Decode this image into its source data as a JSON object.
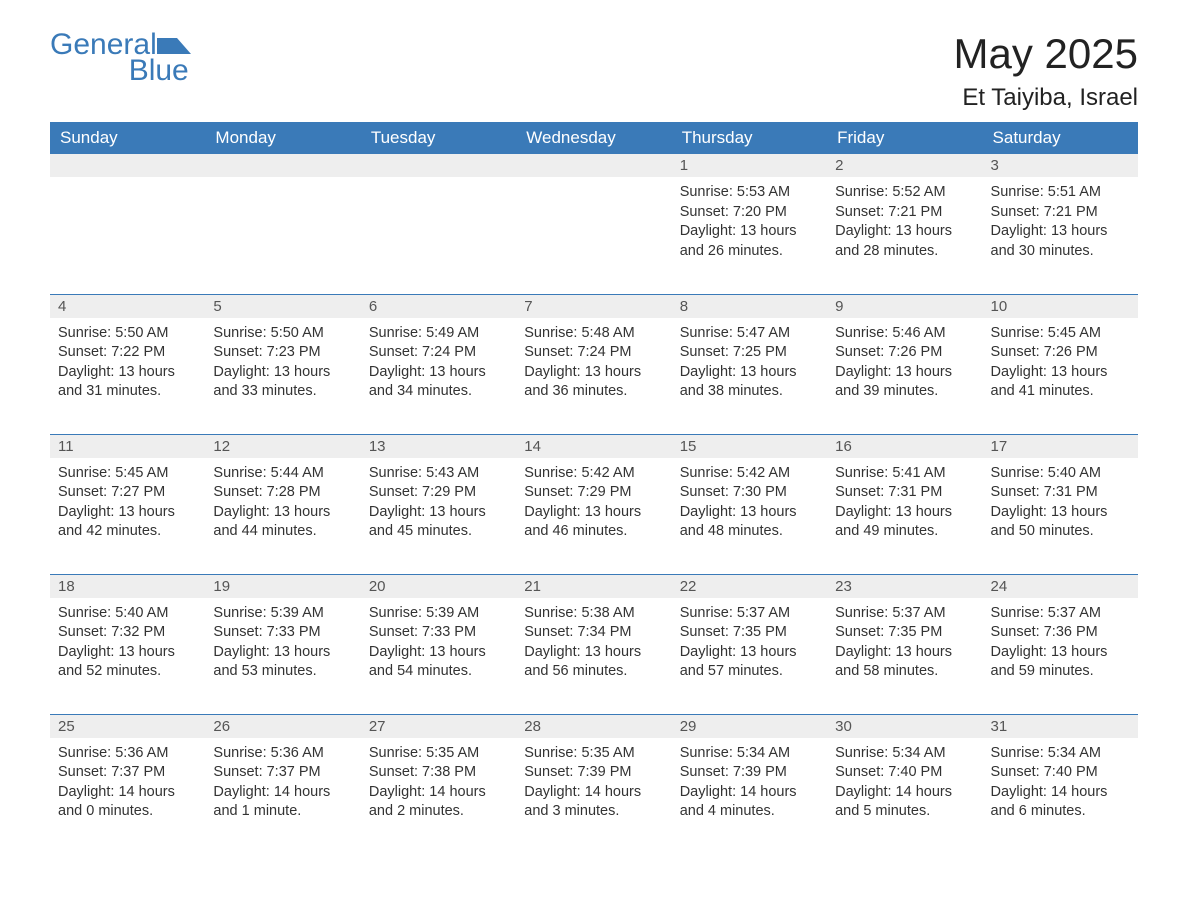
{
  "brand": {
    "name_line1": "General",
    "name_line2": "Blue"
  },
  "title": "May 2025",
  "location": "Et Taiyiba, Israel",
  "colors": {
    "header_bg": "#3a7ab8",
    "header_text": "#ffffff",
    "daybar_bg": "#eeeeee",
    "daybar_text": "#555555",
    "body_text": "#333333",
    "rule": "#3a7ab8",
    "brand": "#3a7ab8"
  },
  "typography": {
    "title_fontsize": 42,
    "location_fontsize": 24,
    "header_fontsize": 17,
    "daynum_fontsize": 15,
    "body_fontsize": 14.5,
    "brand_fontsize": 30
  },
  "layout": {
    "columns": 7,
    "rows": 5,
    "start_day_index": 4
  },
  "weekdays": [
    "Sunday",
    "Monday",
    "Tuesday",
    "Wednesday",
    "Thursday",
    "Friday",
    "Saturday"
  ],
  "labels": {
    "sunrise": "Sunrise: ",
    "sunset": "Sunset: ",
    "daylight": "Daylight: "
  },
  "days": [
    {
      "n": 1,
      "sunrise": "5:53 AM",
      "sunset": "7:20 PM",
      "daylight": "13 hours and 26 minutes."
    },
    {
      "n": 2,
      "sunrise": "5:52 AM",
      "sunset": "7:21 PM",
      "daylight": "13 hours and 28 minutes."
    },
    {
      "n": 3,
      "sunrise": "5:51 AM",
      "sunset": "7:21 PM",
      "daylight": "13 hours and 30 minutes."
    },
    {
      "n": 4,
      "sunrise": "5:50 AM",
      "sunset": "7:22 PM",
      "daylight": "13 hours and 31 minutes."
    },
    {
      "n": 5,
      "sunrise": "5:50 AM",
      "sunset": "7:23 PM",
      "daylight": "13 hours and 33 minutes."
    },
    {
      "n": 6,
      "sunrise": "5:49 AM",
      "sunset": "7:24 PM",
      "daylight": "13 hours and 34 minutes."
    },
    {
      "n": 7,
      "sunrise": "5:48 AM",
      "sunset": "7:24 PM",
      "daylight": "13 hours and 36 minutes."
    },
    {
      "n": 8,
      "sunrise": "5:47 AM",
      "sunset": "7:25 PM",
      "daylight": "13 hours and 38 minutes."
    },
    {
      "n": 9,
      "sunrise": "5:46 AM",
      "sunset": "7:26 PM",
      "daylight": "13 hours and 39 minutes."
    },
    {
      "n": 10,
      "sunrise": "5:45 AM",
      "sunset": "7:26 PM",
      "daylight": "13 hours and 41 minutes."
    },
    {
      "n": 11,
      "sunrise": "5:45 AM",
      "sunset": "7:27 PM",
      "daylight": "13 hours and 42 minutes."
    },
    {
      "n": 12,
      "sunrise": "5:44 AM",
      "sunset": "7:28 PM",
      "daylight": "13 hours and 44 minutes."
    },
    {
      "n": 13,
      "sunrise": "5:43 AM",
      "sunset": "7:29 PM",
      "daylight": "13 hours and 45 minutes."
    },
    {
      "n": 14,
      "sunrise": "5:42 AM",
      "sunset": "7:29 PM",
      "daylight": "13 hours and 46 minutes."
    },
    {
      "n": 15,
      "sunrise": "5:42 AM",
      "sunset": "7:30 PM",
      "daylight": "13 hours and 48 minutes."
    },
    {
      "n": 16,
      "sunrise": "5:41 AM",
      "sunset": "7:31 PM",
      "daylight": "13 hours and 49 minutes."
    },
    {
      "n": 17,
      "sunrise": "5:40 AM",
      "sunset": "7:31 PM",
      "daylight": "13 hours and 50 minutes."
    },
    {
      "n": 18,
      "sunrise": "5:40 AM",
      "sunset": "7:32 PM",
      "daylight": "13 hours and 52 minutes."
    },
    {
      "n": 19,
      "sunrise": "5:39 AM",
      "sunset": "7:33 PM",
      "daylight": "13 hours and 53 minutes."
    },
    {
      "n": 20,
      "sunrise": "5:39 AM",
      "sunset": "7:33 PM",
      "daylight": "13 hours and 54 minutes."
    },
    {
      "n": 21,
      "sunrise": "5:38 AM",
      "sunset": "7:34 PM",
      "daylight": "13 hours and 56 minutes."
    },
    {
      "n": 22,
      "sunrise": "5:37 AM",
      "sunset": "7:35 PM",
      "daylight": "13 hours and 57 minutes."
    },
    {
      "n": 23,
      "sunrise": "5:37 AM",
      "sunset": "7:35 PM",
      "daylight": "13 hours and 58 minutes."
    },
    {
      "n": 24,
      "sunrise": "5:37 AM",
      "sunset": "7:36 PM",
      "daylight": "13 hours and 59 minutes."
    },
    {
      "n": 25,
      "sunrise": "5:36 AM",
      "sunset": "7:37 PM",
      "daylight": "14 hours and 0 minutes."
    },
    {
      "n": 26,
      "sunrise": "5:36 AM",
      "sunset": "7:37 PM",
      "daylight": "14 hours and 1 minute."
    },
    {
      "n": 27,
      "sunrise": "5:35 AM",
      "sunset": "7:38 PM",
      "daylight": "14 hours and 2 minutes."
    },
    {
      "n": 28,
      "sunrise": "5:35 AM",
      "sunset": "7:39 PM",
      "daylight": "14 hours and 3 minutes."
    },
    {
      "n": 29,
      "sunrise": "5:34 AM",
      "sunset": "7:39 PM",
      "daylight": "14 hours and 4 minutes."
    },
    {
      "n": 30,
      "sunrise": "5:34 AM",
      "sunset": "7:40 PM",
      "daylight": "14 hours and 5 minutes."
    },
    {
      "n": 31,
      "sunrise": "5:34 AM",
      "sunset": "7:40 PM",
      "daylight": "14 hours and 6 minutes."
    }
  ]
}
